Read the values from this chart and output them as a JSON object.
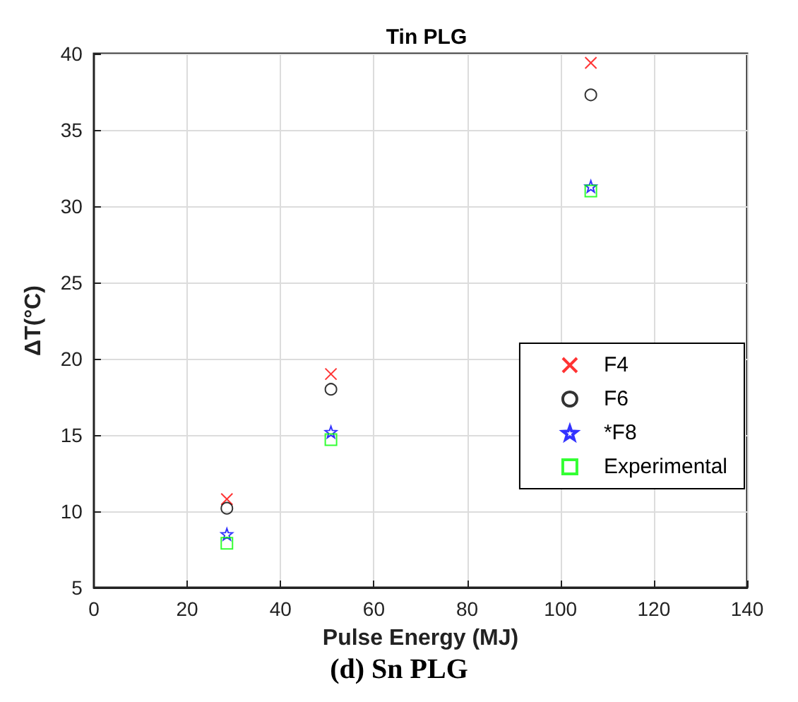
{
  "chart_data": {
    "type": "scatter",
    "title": "Tin PLG",
    "xlabel": "Pulse Energy (MJ)",
    "ylabel": "ΔT(°C)",
    "annotations": [
      "(d) Sn PLG"
    ],
    "x": [
      28.5,
      50.8,
      106.5
    ],
    "series": [
      {
        "name": "F4",
        "color": "#ff0000",
        "marker": "cross",
        "values": [
          10.8,
          19.0,
          39.4
        ]
      },
      {
        "name": "F6",
        "color": "#000000",
        "marker": "circle",
        "values": [
          10.2,
          18.0,
          37.3
        ]
      },
      {
        "name": "*F8",
        "color": "#0000ff",
        "marker": "star",
        "values": [
          8.5,
          15.2,
          31.3
        ]
      },
      {
        "name": "Experimental",
        "color": "#00ff00",
        "marker": "square",
        "values": [
          7.9,
          14.7,
          31.0
        ]
      }
    ],
    "xlim": [
      0,
      140
    ],
    "xticks": [
      0,
      20,
      40,
      60,
      80,
      100,
      120,
      140
    ],
    "ylim": [
      5,
      40
    ],
    "yticks": [
      5,
      10,
      15,
      20,
      25,
      30,
      35,
      40
    ],
    "grid": true,
    "legend": "bottom right"
  }
}
